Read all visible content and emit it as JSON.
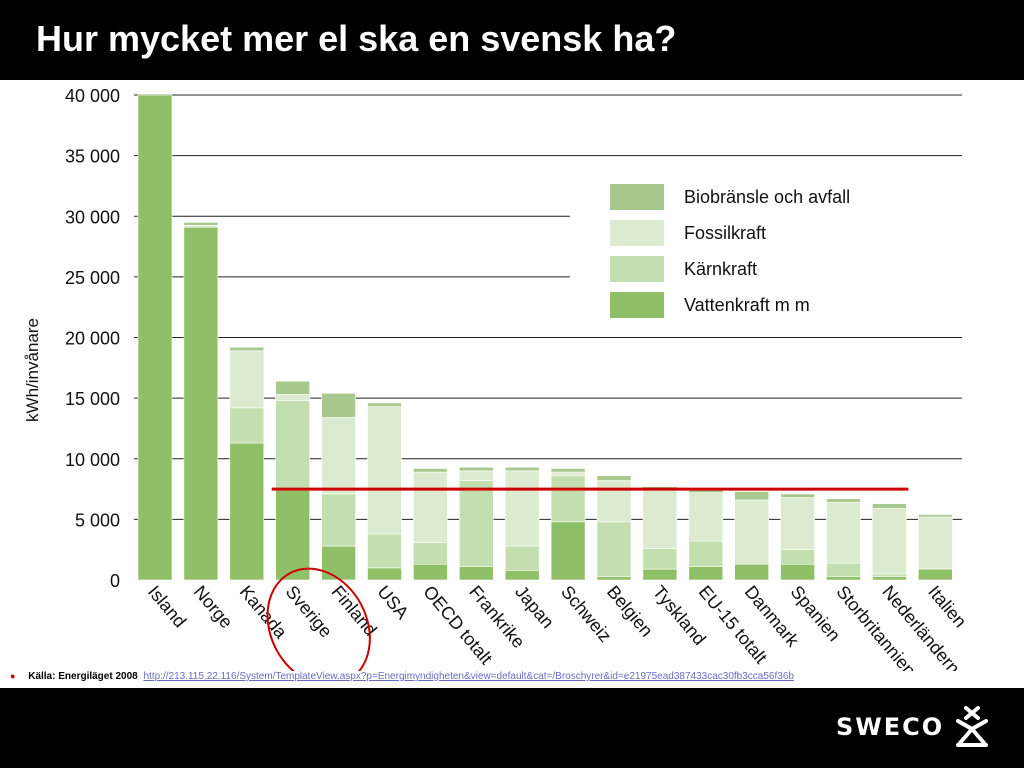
{
  "slide": {
    "title": "Hur mycket mer el ska en svensk ha?",
    "source_label": "Källa: Energiläget 2008",
    "source_link": "http://213.115.22.116/System/TemplateView.aspx?p=Energimyndigheten&view=default&cat=/Broschyrer&id=e21975ead387433cac30fb3cca56f36b",
    "logo_text": "SWECO"
  },
  "colors": {
    "biobransle": "#a8c98e",
    "fossilkraft": "#dcebd0",
    "karnkraft": "#c3dfaf",
    "vattenkraft": "#8fc068",
    "reference_line": "#cc0000",
    "highlight_circle": "#cc0000"
  },
  "chart_data": {
    "type": "bar",
    "stacked": true,
    "ylabel": "kWh/invånare",
    "xlabel": "",
    "ylim": [
      0,
      40000
    ],
    "yticks": [
      0,
      5000,
      10000,
      15000,
      20000,
      25000,
      30000,
      35000,
      40000
    ],
    "ytick_labels": [
      "0",
      "5 000",
      "10 000",
      "15 000",
      "20 000",
      "25 000",
      "30 000",
      "35 000",
      "40 000"
    ],
    "grid": true,
    "legend_position": "top-right",
    "categories": [
      "Island",
      "Norge",
      "Kanada",
      "Sverige",
      "Finland",
      "USA",
      "OECD totalt",
      "Frankrike",
      "Japan",
      "Schweiz",
      "Belgien",
      "Tyskland",
      "EU-15 totalt",
      "Danmark",
      "Spanien",
      "Storbritannien",
      "Nederländerna",
      "Italien"
    ],
    "series": [
      {
        "name": "Vattenkraft m m",
        "color_key": "vattenkraft",
        "values": [
          40000,
          29100,
          11300,
          7400,
          2800,
          1000,
          1300,
          1100,
          800,
          4800,
          300,
          900,
          1100,
          1300,
          1300,
          300,
          300,
          900
        ]
      },
      {
        "name": "Kärnkraft",
        "color_key": "karnkraft",
        "values": [
          0,
          0,
          2900,
          7400,
          4300,
          2800,
          1800,
          7100,
          2000,
          3800,
          4500,
          1700,
          2100,
          0,
          1200,
          1100,
          200,
          0
        ]
      },
      {
        "name": "Fossilkraft",
        "color_key": "fossilkraft",
        "values": [
          0,
          150,
          4700,
          500,
          6300,
          10500,
          5800,
          800,
          6200,
          300,
          3400,
          4800,
          4000,
          5300,
          4300,
          5000,
          5400,
          4300
        ]
      },
      {
        "name": "Biobränsle och avfall",
        "color_key": "biobransle",
        "values": [
          0,
          250,
          300,
          1100,
          2000,
          300,
          300,
          300,
          300,
          300,
          400,
          300,
          300,
          700,
          300,
          300,
          400,
          200
        ]
      }
    ],
    "reference_line": {
      "value": 7500,
      "from_category": "Sverige",
      "to_category": "Nederländerna"
    },
    "highlighted_category": "Sverige"
  }
}
